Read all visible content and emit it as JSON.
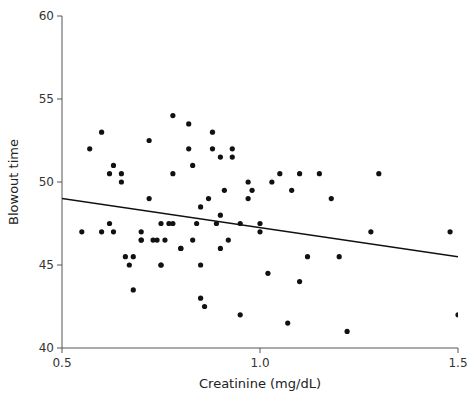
{
  "chart_data": {
    "type": "scatter",
    "xlabel": "Creatinine (mg/dL)",
    "ylabel": "Blowout time",
    "series": [
      {
        "type": "scatter",
        "color": "#111111",
        "x": [
          0.55,
          0.57,
          0.6,
          0.6,
          0.62,
          0.62,
          0.63,
          0.63,
          0.65,
          0.65,
          0.66,
          0.67,
          0.68,
          0.68,
          0.7,
          0.7,
          0.7,
          0.72,
          0.72,
          0.73,
          0.74,
          0.75,
          0.75,
          0.75,
          0.76,
          0.77,
          0.78,
          0.78,
          0.78,
          0.8,
          0.8,
          0.82,
          0.82,
          0.83,
          0.83,
          0.84,
          0.85,
          0.85,
          0.85,
          0.86,
          0.87,
          0.88,
          0.88,
          0.89,
          0.9,
          0.9,
          0.9,
          0.91,
          0.92,
          0.93,
          0.93,
          0.95,
          0.95,
          0.97,
          0.97,
          0.98,
          1.0,
          1.0,
          1.02,
          1.03,
          1.05,
          1.07,
          1.08,
          1.1,
          1.1,
          1.12,
          1.15,
          1.18,
          1.2,
          1.22,
          1.28,
          1.3,
          1.48,
          1.5
        ],
        "values": [
          47.0,
          52.0,
          53.0,
          47.0,
          47.5,
          50.5,
          51.0,
          47.0,
          50.5,
          50.0,
          45.5,
          45.0,
          43.5,
          45.5,
          47.0,
          46.5,
          46.5,
          49.0,
          52.5,
          46.5,
          46.5,
          45.0,
          45.0,
          47.5,
          46.5,
          47.5,
          50.5,
          54.0,
          47.5,
          46.0,
          46.0,
          53.5,
          52.0,
          51.0,
          46.5,
          47.5,
          48.5,
          43.0,
          45.0,
          42.5,
          49.0,
          53.0,
          52.0,
          47.5,
          51.5,
          48.0,
          46.0,
          49.5,
          46.5,
          51.5,
          52.0,
          47.5,
          42.0,
          50.0,
          49.0,
          49.5,
          47.5,
          47.0,
          44.5,
          50.0,
          50.5,
          41.5,
          49.5,
          44.0,
          50.5,
          45.5,
          50.5,
          49.0,
          45.5,
          41.0,
          47.0,
          50.5,
          47.0,
          42.0
        ]
      },
      {
        "type": "line",
        "color": "#111111",
        "x": [
          0.5,
          1.5
        ],
        "values": [
          49.0,
          45.5
        ]
      }
    ],
    "xlim": [
      0.5,
      1.5
    ],
    "ylim": [
      40,
      60
    ],
    "xticks": [
      0.5,
      {
        "value": 1.0,
        "label": "1.0"
      },
      1.5
    ],
    "yticks": [
      40,
      45,
      50,
      55,
      60
    ]
  }
}
